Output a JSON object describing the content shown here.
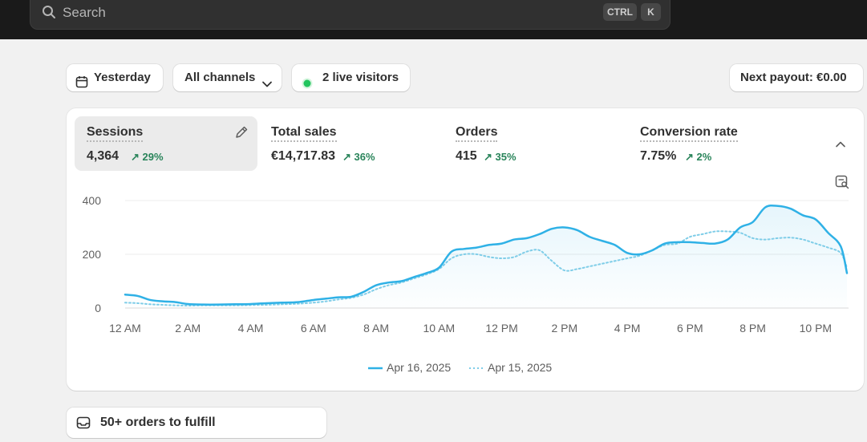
{
  "search": {
    "placeholder": "Search",
    "shortcut_keys": [
      "CTRL",
      "K"
    ]
  },
  "filters": {
    "date_label": "Yesterday",
    "channels_label": "All channels",
    "live_visitors_label": "2 live visitors",
    "live_color": "#22c55e"
  },
  "payout": {
    "label": "Next payout: €0.00"
  },
  "metrics": [
    {
      "title": "Sessions",
      "value": "4,364",
      "delta": "29%",
      "active": true
    },
    {
      "title": "Total sales",
      "value": "€14,717.83",
      "delta": "36%"
    },
    {
      "title": "Orders",
      "value": "415",
      "delta": "35%"
    },
    {
      "title": "Conversion rate",
      "value": "7.75%",
      "delta": "2%"
    }
  ],
  "colors": {
    "accent": "#2fb1e6",
    "positive": "#29845a"
  },
  "chart_data": {
    "type": "line",
    "title": "Sessions",
    "ylim": [
      0,
      400
    ],
    "yticks": [
      "400",
      "200",
      "0"
    ],
    "xticks": [
      "12 AM",
      "2 AM",
      "4 AM",
      "6 AM",
      "8 AM",
      "10 AM",
      "12 PM",
      "2 PM",
      "4 PM",
      "6 PM",
      "8 PM",
      "10 PM"
    ],
    "series": [
      {
        "name": "Apr 16, 2025",
        "style": "solid",
        "x": [
          0,
          0.4,
          0.8,
          1.2,
          1.6,
          2,
          2.5,
          3,
          3.5,
          4,
          4.5,
          5,
          5.5,
          6,
          6.4,
          6.8,
          7.2,
          7.6,
          8,
          8.4,
          8.8,
          9.2,
          9.6,
          10,
          10.4,
          10.8,
          11.2,
          11.6,
          12,
          12.4,
          12.8,
          13.2,
          13.6,
          14,
          14.4,
          14.8,
          15.2,
          15.6,
          16,
          16.4,
          16.8,
          17.2,
          17.6,
          18,
          18.4,
          18.8,
          19.2,
          19.6,
          20,
          20.4,
          20.8,
          21.2,
          21.6,
          22,
          22.4,
          22.8,
          23
        ],
        "values": [
          50,
          45,
          30,
          25,
          22,
          15,
          13,
          13,
          14,
          15,
          18,
          20,
          22,
          30,
          35,
          40,
          42,
          60,
          85,
          95,
          100,
          115,
          130,
          150,
          210,
          220,
          225,
          235,
          240,
          255,
          260,
          275,
          295,
          300,
          290,
          265,
          250,
          235,
          205,
          200,
          215,
          240,
          245,
          245,
          242,
          240,
          255,
          300,
          320,
          375,
          380,
          370,
          345,
          330,
          280,
          230,
          130
        ]
      },
      {
        "name": "Apr 15, 2025",
        "style": "dotted",
        "x": [
          0,
          0.4,
          0.8,
          1.2,
          1.6,
          2,
          2.5,
          3,
          3.5,
          4,
          4.5,
          5,
          5.5,
          6,
          6.4,
          6.8,
          7.2,
          7.6,
          8,
          8.4,
          8.8,
          9.2,
          9.6,
          10,
          10.4,
          10.8,
          11.2,
          11.6,
          12,
          12.4,
          12.8,
          13.2,
          13.6,
          14,
          14.4,
          14.8,
          15.2,
          15.6,
          16,
          16.4,
          16.8,
          17.2,
          17.6,
          18,
          18.4,
          18.8,
          19.2,
          19.6,
          20,
          20.4,
          20.8,
          21.2,
          21.6,
          22,
          22.4,
          22.8,
          23
        ],
        "values": [
          20,
          18,
          14,
          12,
          10,
          9,
          10,
          10,
          10,
          11,
          12,
          14,
          16,
          20,
          25,
          32,
          38,
          50,
          70,
          85,
          95,
          110,
          125,
          145,
          185,
          200,
          200,
          190,
          185,
          190,
          210,
          215,
          175,
          140,
          145,
          155,
          165,
          175,
          185,
          195,
          215,
          235,
          240,
          265,
          275,
          285,
          285,
          280,
          260,
          255,
          260,
          262,
          255,
          240,
          225,
          205,
          150
        ]
      }
    ]
  },
  "fulfill": {
    "label": "50+ orders to fulfill"
  }
}
